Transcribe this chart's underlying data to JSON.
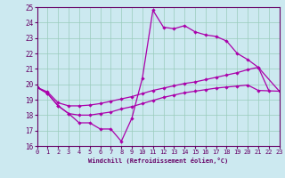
{
  "xlabel": "Windchill (Refroidissement éolien,°C)",
  "xlim": [
    0,
    23
  ],
  "ylim": [
    16,
    25
  ],
  "yticks": [
    16,
    17,
    18,
    19,
    20,
    21,
    22,
    23,
    24,
    25
  ],
  "xticks": [
    0,
    1,
    2,
    3,
    4,
    5,
    6,
    7,
    8,
    9,
    10,
    11,
    12,
    13,
    14,
    15,
    16,
    17,
    18,
    19,
    20,
    21,
    22,
    23
  ],
  "bg_color": "#cce9f0",
  "line_color": "#aa00aa",
  "grid_color": "#99ccbb",
  "line1_x": [
    0,
    1,
    2,
    3,
    4,
    5,
    6,
    7,
    8,
    9,
    10,
    11,
    12,
    13,
    14,
    15,
    16,
    17,
    18,
    19,
    20,
    21,
    22
  ],
  "line1_y": [
    19.8,
    19.4,
    18.6,
    18.1,
    17.5,
    17.5,
    17.1,
    17.1,
    16.3,
    17.8,
    20.4,
    24.8,
    23.7,
    23.6,
    23.8,
    23.4,
    23.2,
    23.1,
    22.8,
    22.0,
    21.6,
    21.1,
    19.6
  ],
  "line2_x": [
    0,
    1,
    2,
    3,
    4,
    5,
    6,
    7,
    8,
    9,
    10,
    11,
    12,
    13,
    14,
    15,
    16,
    17,
    18,
    19,
    20,
    21,
    23
  ],
  "line2_y": [
    19.8,
    19.5,
    18.8,
    18.6,
    18.6,
    18.65,
    18.75,
    18.9,
    19.05,
    19.2,
    19.4,
    19.6,
    19.75,
    19.9,
    20.05,
    20.15,
    20.3,
    20.45,
    20.6,
    20.75,
    20.95,
    21.1,
    19.55
  ],
  "line3_x": [
    0,
    1,
    2,
    3,
    4,
    5,
    6,
    7,
    8,
    9,
    10,
    11,
    12,
    13,
    14,
    15,
    16,
    17,
    18,
    19,
    20,
    21,
    23
  ],
  "line3_y": [
    19.8,
    19.4,
    18.6,
    18.1,
    18.0,
    18.0,
    18.1,
    18.2,
    18.4,
    18.55,
    18.75,
    18.95,
    19.15,
    19.3,
    19.45,
    19.55,
    19.65,
    19.75,
    19.82,
    19.88,
    19.95,
    19.6,
    19.55
  ]
}
